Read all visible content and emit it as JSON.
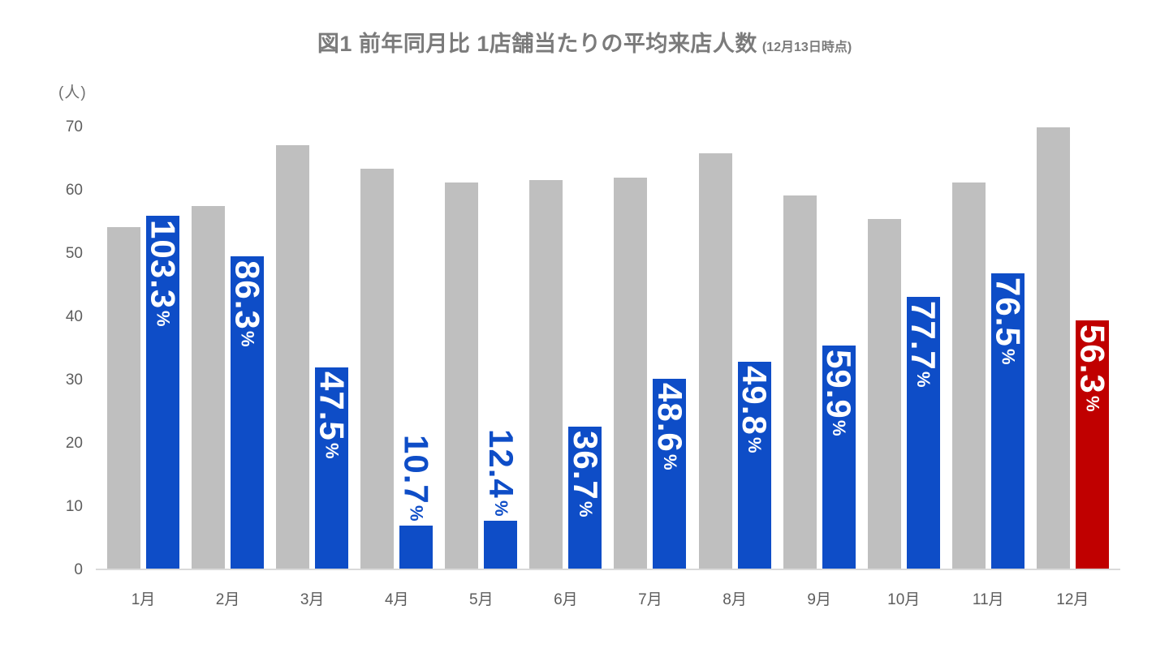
{
  "page": {
    "background": "#ffffff"
  },
  "header": {
    "title": "図1 前年同月比 1店舗当たりの平均来店人数",
    "title_note": "(12月13日時点)"
  },
  "chart_data": {
    "type": "bar",
    "title": "図1 前年同月比 1店舗当たりの平均来店人数",
    "title_note": "(12月13日時点)",
    "unit_label": "(人)",
    "xlabel": "",
    "ylabel": "(人)",
    "ylim": [
      0,
      70
    ],
    "yticks": [
      0,
      10,
      20,
      30,
      40,
      50,
      60,
      70
    ],
    "grid": false,
    "legend": "none",
    "categories": [
      "1月",
      "2月",
      "3月",
      "4月",
      "5月",
      "6月",
      "7月",
      "8月",
      "9月",
      "10月",
      "11月",
      "12月"
    ],
    "series": [
      {
        "name": "previous-year-average-visitors",
        "color": "#bfbfbf",
        "values": [
          54.0,
          57.3,
          66.9,
          63.2,
          61.0,
          61.4,
          61.8,
          65.6,
          59.0,
          55.3,
          61.0,
          69.7
        ]
      },
      {
        "name": "current-year-average-visitors",
        "color": "#0e4dc7",
        "highlight_index": 11,
        "highlight_color": "#c00000",
        "values": [
          55.8,
          49.4,
          31.8,
          6.8,
          7.6,
          22.5,
          30.0,
          32.7,
          35.3,
          43.0,
          46.7,
          39.2
        ]
      }
    ],
    "bar_labels": {
      "values": [
        "103.3",
        "86.3",
        "47.5",
        "10.7",
        "12.4",
        "36.7",
        "48.6",
        "49.8",
        "59.9",
        "77.7",
        "76.5",
        "56.3"
      ],
      "suffix": "%",
      "position": [
        "inside",
        "inside",
        "inside",
        "outside",
        "outside",
        "inside",
        "inside",
        "inside",
        "inside",
        "inside",
        "inside",
        "inside"
      ],
      "inside_color": "#ffffff"
    },
    "colors": {
      "prev_bar": "#bfbfbf",
      "current_bar": "#0e4dc7",
      "highlight_bar": "#c00000",
      "axis_text": "#5d5d5d",
      "title_text": "#7b7b7b",
      "axis_line": "#dadada"
    }
  }
}
